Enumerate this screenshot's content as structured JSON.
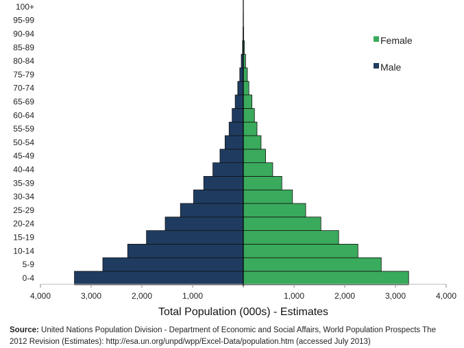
{
  "chart_data": {
    "type": "bar",
    "orientation": "horizontal",
    "subtype": "population-pyramid",
    "categories": [
      "0-4",
      "5-9",
      "10-14",
      "15-19",
      "20-24",
      "25-29",
      "30-34",
      "35-39",
      "40-44",
      "45-49",
      "50-54",
      "55-59",
      "60-64",
      "65-69",
      "70-74",
      "75-79",
      "80-84",
      "85-89",
      "90-94",
      "95-99",
      "100+"
    ],
    "series": [
      {
        "name": "Male",
        "color": "#1f3c60",
        "values": [
          3330,
          2770,
          2280,
          1910,
          1540,
          1240,
          980,
          780,
          600,
          460,
          360,
          280,
          220,
          160,
          110,
          70,
          40,
          15,
          5,
          2,
          1
        ]
      },
      {
        "name": "Female",
        "color": "#3aaa5c",
        "values": [
          3260,
          2720,
          2260,
          1880,
          1530,
          1230,
          970,
          760,
          580,
          440,
          350,
          270,
          220,
          170,
          110,
          80,
          45,
          20,
          6,
          2,
          1
        ]
      }
    ],
    "xticks": [
      "4,000",
      "3,000",
      "2,000",
      "1,000",
      "",
      "1,000",
      "2,000",
      "3,000",
      "4,000"
    ],
    "xlim": [
      -4000,
      4000
    ],
    "xlabel": "Total Population (000s) - Estimates",
    "ylabel": "",
    "title": "",
    "legend": [
      {
        "name": "Female",
        "color": "#3aaa5c"
      },
      {
        "name": "Male",
        "color": "#1f3c60"
      }
    ],
    "legend_placement": "top-right",
    "grid": false
  },
  "source": {
    "label": "Source:",
    "text": "United Nations Population Division - Department of Economic and Social Affairs, World Population Prospects The 2012 Revision (Estimates): http://esa.un.org/unpd/wpp/Excel-Data/population.htm (accessed July 2013)"
  }
}
